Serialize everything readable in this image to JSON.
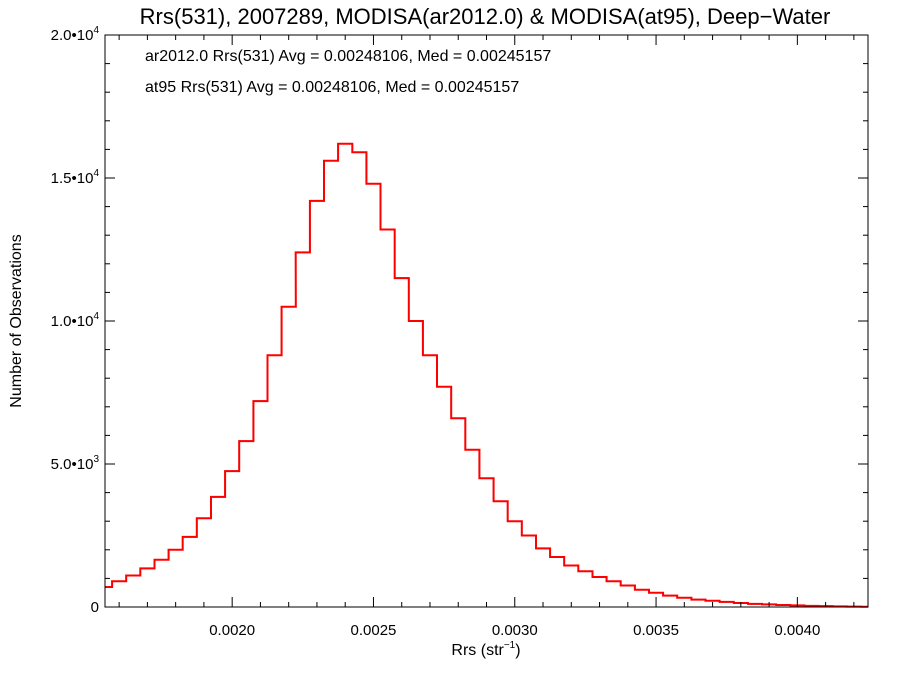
{
  "chart_data": {
    "type": "line",
    "title": "Rrs(531), 2007289, MODISA(ar2012.0) & MODISA(at95), Deep−Water",
    "xlabel_main": "Rrs (str",
    "xlabel_sup": "−1",
    "xlabel_end": ")",
    "ylabel": "Number of Observations",
    "xlim": [
      0.00155,
      0.00425
    ],
    "ylim": [
      0,
      20000
    ],
    "x_ticks": [
      {
        "value": 0.002,
        "label": "0.0020"
      },
      {
        "value": 0.0025,
        "label": "0.0025"
      },
      {
        "value": 0.003,
        "label": "0.0030"
      },
      {
        "value": 0.0035,
        "label": "0.0035"
      },
      {
        "value": 0.004,
        "label": "0.0040"
      }
    ],
    "y_ticks": [
      {
        "value": 0,
        "label": "0",
        "sup": ""
      },
      {
        "value": 5000,
        "label": "5.0•10",
        "sup": "3"
      },
      {
        "value": 10000,
        "label": "1.0•10",
        "sup": "4"
      },
      {
        "value": 15000,
        "label": "1.5•10",
        "sup": "4"
      },
      {
        "value": 20000,
        "label": "2.0•10",
        "sup": "4"
      }
    ],
    "annotations": [
      {
        "text": "ar2012.0 Rrs(531) Avg = 0.00248106, Med = 0.00245157",
        "color": "#000000"
      },
      {
        "text": "at95 Rrs(531) Avg = 0.00248106, Med = 0.00245157",
        "color": "#ff0000"
      }
    ],
    "series": [
      {
        "color": "#000000",
        "x": [
          0.00155,
          0.0016,
          0.00165,
          0.0017,
          0.00175,
          0.0018,
          0.00185,
          0.0019,
          0.00195,
          0.002,
          0.00205,
          0.0021,
          0.00215,
          0.0022,
          0.00225,
          0.0023,
          0.00235,
          0.0024,
          0.00245,
          0.0025,
          0.00255,
          0.0026,
          0.00265,
          0.0027,
          0.00275,
          0.0028,
          0.00285,
          0.0029,
          0.00295,
          0.003,
          0.00305,
          0.0031,
          0.00315,
          0.0032,
          0.00325,
          0.0033,
          0.00335,
          0.0034,
          0.00345,
          0.0035,
          0.00355,
          0.0036,
          0.00365,
          0.0037,
          0.00375,
          0.0038,
          0.00385,
          0.0039,
          0.00395,
          0.004,
          0.00405,
          0.0041,
          0.00415,
          0.0042,
          0.00425
        ],
        "y": [
          700,
          900,
          1100,
          1350,
          1650,
          2000,
          2450,
          3100,
          3850,
          4750,
          5800,
          7200,
          8800,
          10500,
          12400,
          14200,
          15600,
          16200,
          15900,
          14800,
          13200,
          11500,
          10000,
          8800,
          7700,
          6600,
          5500,
          4500,
          3700,
          3000,
          2500,
          2050,
          1750,
          1450,
          1250,
          1050,
          900,
          750,
          600,
          500,
          400,
          320,
          260,
          220,
          180,
          140,
          110,
          90,
          70,
          55,
          40,
          30,
          22,
          15,
          10
        ]
      },
      {
        "color": "#ff0000",
        "x": [
          0.00155,
          0.0016,
          0.00165,
          0.0017,
          0.00175,
          0.0018,
          0.00185,
          0.0019,
          0.00195,
          0.002,
          0.00205,
          0.0021,
          0.00215,
          0.0022,
          0.00225,
          0.0023,
          0.00235,
          0.0024,
          0.00245,
          0.0025,
          0.00255,
          0.0026,
          0.00265,
          0.0027,
          0.00275,
          0.0028,
          0.00285,
          0.0029,
          0.00295,
          0.003,
          0.00305,
          0.0031,
          0.00315,
          0.0032,
          0.00325,
          0.0033,
          0.00335,
          0.0034,
          0.00345,
          0.0035,
          0.00355,
          0.0036,
          0.00365,
          0.0037,
          0.00375,
          0.0038,
          0.00385,
          0.0039,
          0.00395,
          0.004,
          0.00405,
          0.0041,
          0.00415,
          0.0042,
          0.00425
        ],
        "y": [
          700,
          900,
          1100,
          1350,
          1650,
          2000,
          2450,
          3100,
          3850,
          4750,
          5800,
          7200,
          8800,
          10500,
          12400,
          14200,
          15600,
          16200,
          15900,
          14800,
          13200,
          11500,
          10000,
          8800,
          7700,
          6600,
          5500,
          4500,
          3700,
          3000,
          2500,
          2050,
          1750,
          1450,
          1250,
          1050,
          900,
          750,
          600,
          500,
          400,
          320,
          260,
          220,
          180,
          140,
          110,
          90,
          70,
          55,
          40,
          30,
          22,
          15,
          10
        ]
      }
    ]
  }
}
